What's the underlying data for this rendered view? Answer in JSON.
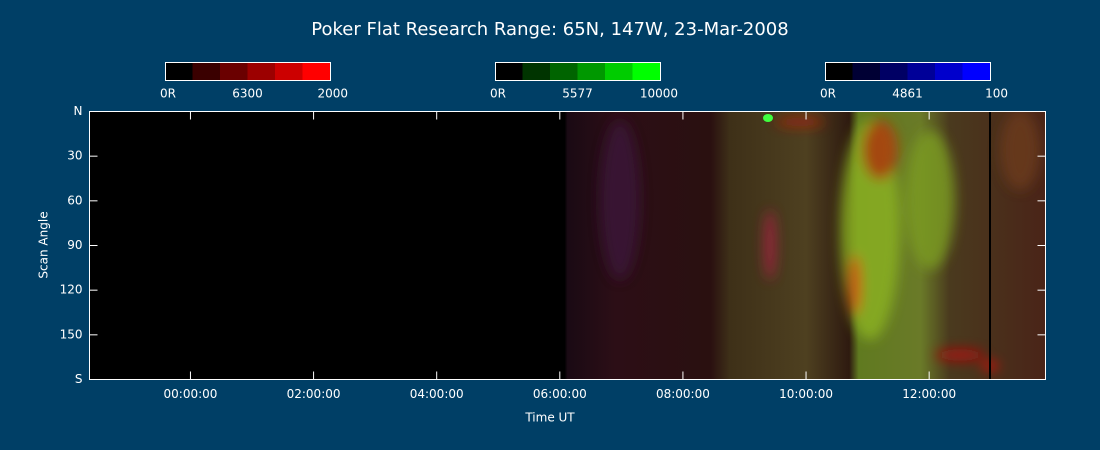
{
  "chart_data": {
    "type": "keogram",
    "title": "Poker Flat Research Range: 65N, 147W, 23-Mar-2008",
    "xlabel": "Time UT",
    "ylabel": "Scan Angle",
    "xlim": [
      -1.64,
      13.89
    ],
    "xticks": [
      {
        "value": 0,
        "label": "00:00:00"
      },
      {
        "value": 2,
        "label": "02:00:00"
      },
      {
        "value": 4,
        "label": "04:00:00"
      },
      {
        "value": 6,
        "label": "06:00:00"
      },
      {
        "value": 8,
        "label": "08:00:00"
      },
      {
        "value": 10,
        "label": "10:00:00"
      },
      {
        "value": 12,
        "label": "12:00:00"
      }
    ],
    "ylim": [
      0,
      180
    ],
    "y_inverted": true,
    "yticks": [
      {
        "value": 0,
        "label": "N"
      },
      30,
      60,
      90,
      120,
      150,
      {
        "value": 180,
        "label": "S"
      }
    ],
    "colorbars": [
      {
        "min": {
          "value": 0,
          "label": "0R"
        },
        "wavelength": 6300,
        "max": 2000,
        "colors": [
          "#000000",
          "#3a0000",
          "#6a0000",
          "#9c0000",
          "#cc0000",
          "#ff0000"
        ]
      },
      {
        "min": {
          "value": 0,
          "label": "0R"
        },
        "wavelength": 5577,
        "max": 10000,
        "colors": [
          "#000000",
          "#003400",
          "#006400",
          "#009800",
          "#00cc00",
          "#00ff00"
        ]
      },
      {
        "min": {
          "value": 0,
          "label": "0R"
        },
        "wavelength": 4861,
        "max": 100,
        "colors": [
          "#000000",
          "#000034",
          "#000064",
          "#000098",
          "#0000cc",
          "#0000ff"
        ]
      }
    ]
  }
}
